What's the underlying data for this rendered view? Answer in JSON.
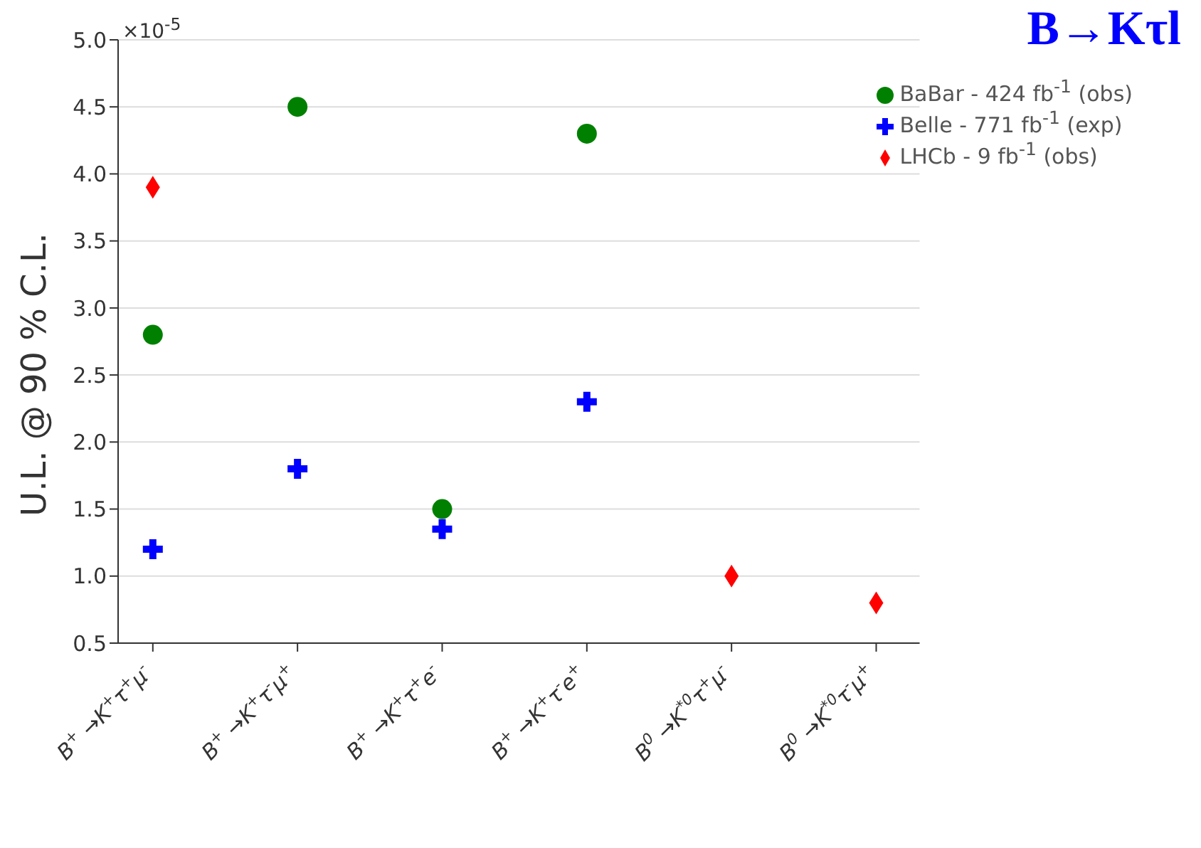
{
  "chart_data": {
    "type": "scatter",
    "title": "B→Kτl",
    "ylabel": "U.L. @ 90 % C.L.",
    "annotations": [
      "×10$^{-5}$"
    ],
    "categories": [
      "B$^{+}$ →K$^{+}$τ$^{+}$μ$^{-}$",
      "B$^{+}$ →K$^{+}$τ$^{-}$μ$^{+}$",
      "B$^{+}$ →K$^{+}$τ$^{+}$e$^{-}$",
      "B$^{+}$ →K$^{+}$τ$^{-}$e$^{+}$",
      "B$^{0}$ →K$^{*0}$τ$^{+}$μ$^{-}$",
      "B$^{0}$ →K$^{*0}$τ$^{-}$μ$^{+}$"
    ],
    "series": [
      {
        "name": "BaBar - 424 fb$^{-1}$ (obs)",
        "color": "#008000",
        "marker": "circle",
        "values": [
          2.8,
          4.5,
          1.5,
          4.3,
          null,
          null
        ]
      },
      {
        "name": "Belle - 771 fb$^{-1}$ (exp)",
        "color": "#0000ff",
        "marker": "cross",
        "values": [
          1.2,
          1.8,
          1.35,
          2.3,
          null,
          null
        ]
      },
      {
        "name": "LHCb - 9 fb$^{-1}$ (obs)",
        "color": "#ff0000",
        "marker": "diamond",
        "values": [
          3.9,
          null,
          null,
          null,
          1.0,
          0.8
        ]
      }
    ],
    "ylim": [
      0.5,
      5.0
    ],
    "yticks": [
      0.5,
      {
        "value": 1,
        "label": "1.0"
      },
      1.5,
      {
        "value": 2,
        "label": "2.0"
      },
      2.5,
      {
        "value": 3,
        "label": "3.0"
      },
      3.5,
      {
        "value": 4,
        "label": "4.0"
      },
      4.5,
      {
        "value": 5,
        "label": "5.0"
      }
    ],
    "grid": "y",
    "legend": "top right"
  }
}
